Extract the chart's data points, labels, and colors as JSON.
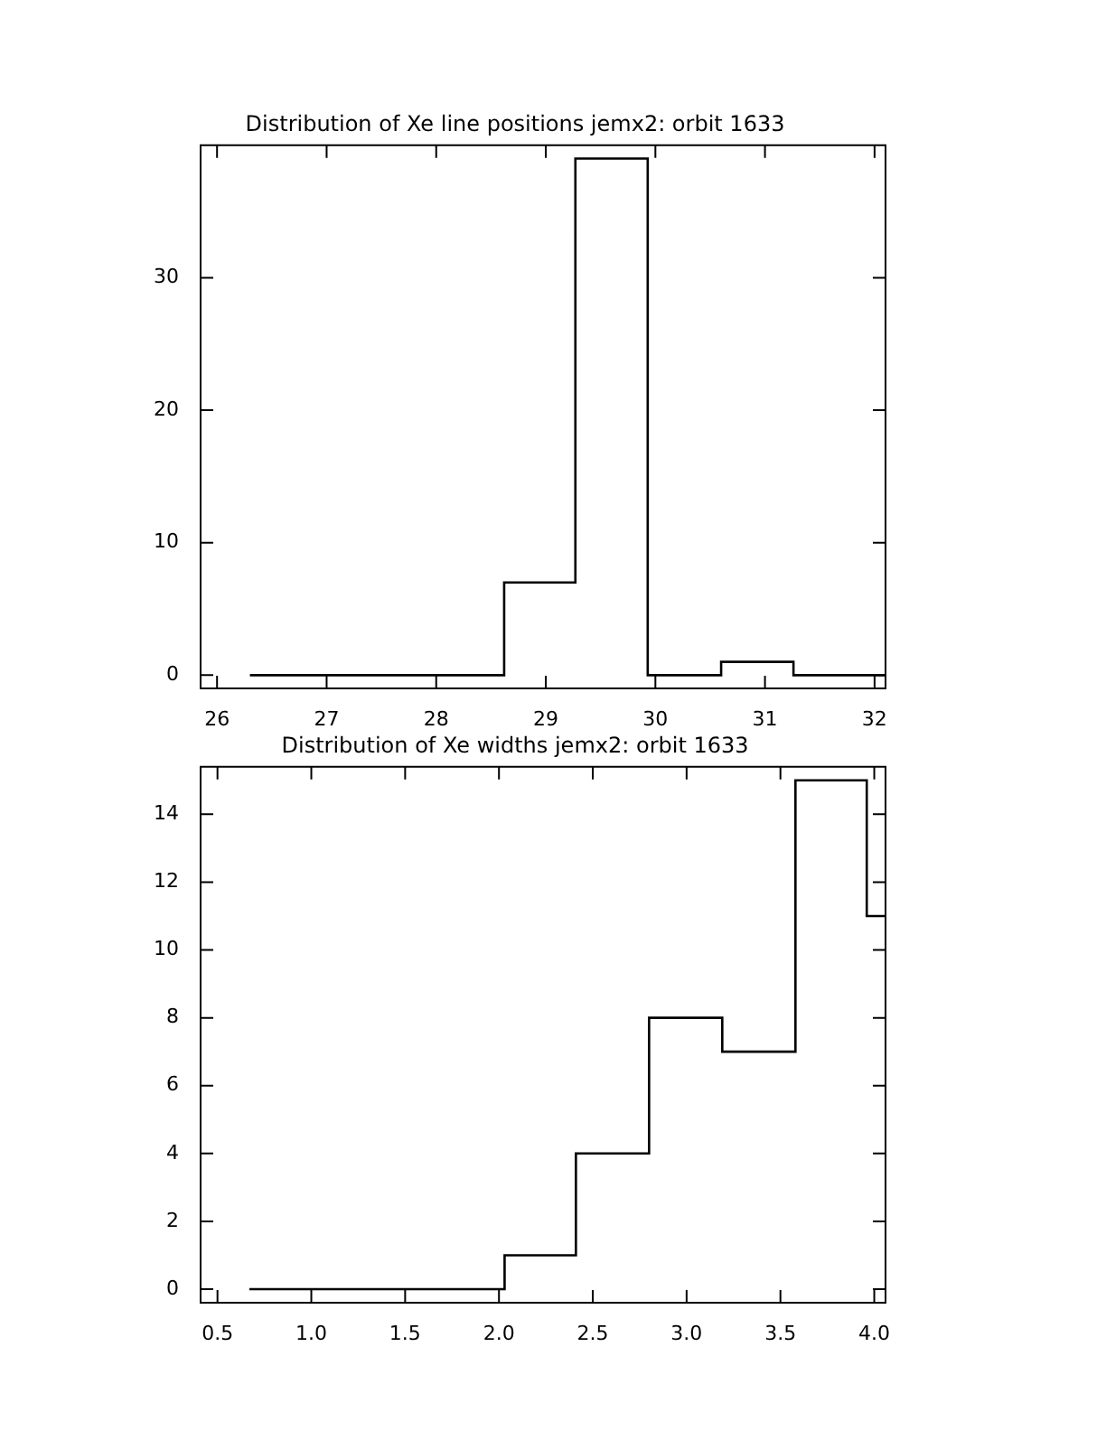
{
  "chart_data": [
    {
      "type": "histogram",
      "title": "Distribution of Xe line positions jemx2: orbit 1633",
      "bins": [
        26.3,
        28.62,
        29.27,
        29.93,
        30.6,
        31.26,
        32.1
      ],
      "values": [
        0,
        7,
        39,
        0,
        1,
        0
      ],
      "color": "#000000",
      "xlim": [
        25.85,
        32.1
      ],
      "xticks": [
        26,
        27,
        28,
        29,
        30,
        31,
        32
      ],
      "ylim": [
        -1,
        40
      ],
      "yticks": [
        0,
        10,
        20,
        30
      ]
    },
    {
      "type": "histogram",
      "title": "Distribution of Xe widths jemx2: orbit 1633",
      "bins": [
        0.67,
        2.03,
        2.41,
        2.8,
        3.19,
        3.58,
        3.96,
        4.06
      ],
      "values": [
        0,
        1,
        4,
        8,
        7,
        15,
        11
      ],
      "color": "#000000",
      "xlim": [
        0.41,
        4.06
      ],
      "xticks": [
        {
          "value": 0.5,
          "label": "0.5"
        },
        {
          "value": 1,
          "label": "1.0"
        },
        {
          "value": 1.5,
          "label": "1.5"
        },
        {
          "value": 2,
          "label": "2.0"
        },
        {
          "value": 2.5,
          "label": "2.5"
        },
        {
          "value": 3,
          "label": "3.0"
        },
        {
          "value": 3.5,
          "label": "3.5"
        },
        {
          "value": 4,
          "label": "4.0"
        }
      ],
      "ylim": [
        -0.4,
        15.4
      ],
      "yticks": [
        0,
        2,
        4,
        6,
        8,
        10,
        12,
        14
      ]
    }
  ]
}
